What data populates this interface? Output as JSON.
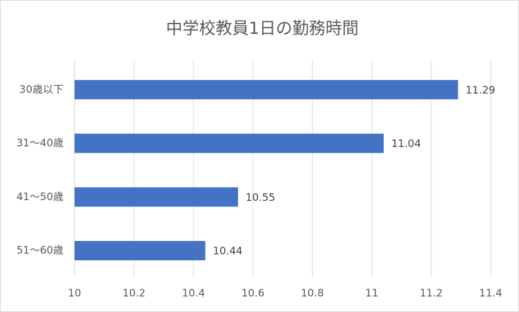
{
  "chart_data": {
    "type": "hbar",
    "title": "中学校教員1日の勤務時間",
    "categories": [
      "30歳以下",
      "31～40歳",
      "41～50歳",
      "51～60歳"
    ],
    "values": [
      11.29,
      11.04,
      10.55,
      10.44
    ],
    "color": "#4472c4",
    "xlim": [
      10,
      11.4
    ],
    "xticks": [
      10,
      10.2,
      10.4,
      10.6,
      10.8,
      11,
      11.2,
      11.4
    ],
    "grid": true
  }
}
